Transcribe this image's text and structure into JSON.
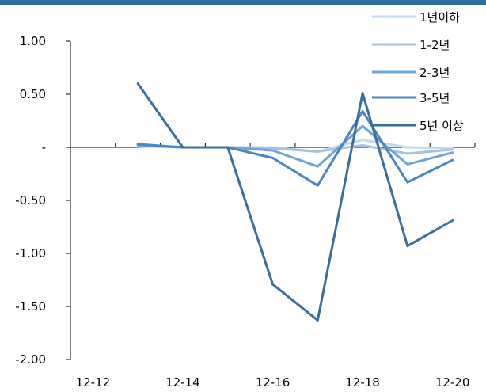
{
  "colors": {
    "top_bar": "#2f6fa6"
  },
  "chart_data": {
    "type": "line",
    "categories": [
      "12-12",
      "12-13",
      "12-14",
      "12-15",
      "12-16",
      "12-17",
      "12-18",
      "12-19",
      "12-20"
    ],
    "x_tick_labels": [
      "12-12",
      "12-14",
      "12-16",
      "12-18",
      "12-20"
    ],
    "y_ticks": [
      1.0,
      0.5,
      0,
      -0.5,
      -1.0,
      -1.5,
      -2.0
    ],
    "y_tick_labels": [
      "1.00",
      "0.50",
      "-",
      "-0.50",
      "-1.00",
      "-1.50",
      "-2.00"
    ],
    "ylim": [
      -2.0,
      1.0
    ],
    "grid": false,
    "legend_position": "top-right",
    "series": [
      {
        "name": "1년이하",
        "color": "#c5d8ee",
        "values": [
          null,
          0.01,
          0.0,
          0.0,
          0.0,
          -0.04,
          0.07,
          0.0,
          -0.01
        ]
      },
      {
        "name": "1-2년",
        "color": "#a3c3e6",
        "values": [
          null,
          0.02,
          0.0,
          0.0,
          -0.01,
          -0.04,
          0.02,
          -0.06,
          -0.02
        ]
      },
      {
        "name": "2-3년",
        "color": "#6fa4d8",
        "values": [
          null,
          0.02,
          0.0,
          0.0,
          -0.03,
          -0.18,
          0.2,
          -0.16,
          -0.05
        ]
      },
      {
        "name": "3-5년",
        "color": "#4a86bf",
        "values": [
          null,
          0.03,
          0.0,
          0.0,
          -0.1,
          -0.36,
          0.34,
          -0.33,
          -0.12
        ]
      },
      {
        "name": "5년 이상",
        "color": "#3a6e9e",
        "values": [
          null,
          0.6,
          0.0,
          0.0,
          -1.29,
          -1.63,
          0.51,
          -0.93,
          -0.69
        ]
      }
    ]
  }
}
